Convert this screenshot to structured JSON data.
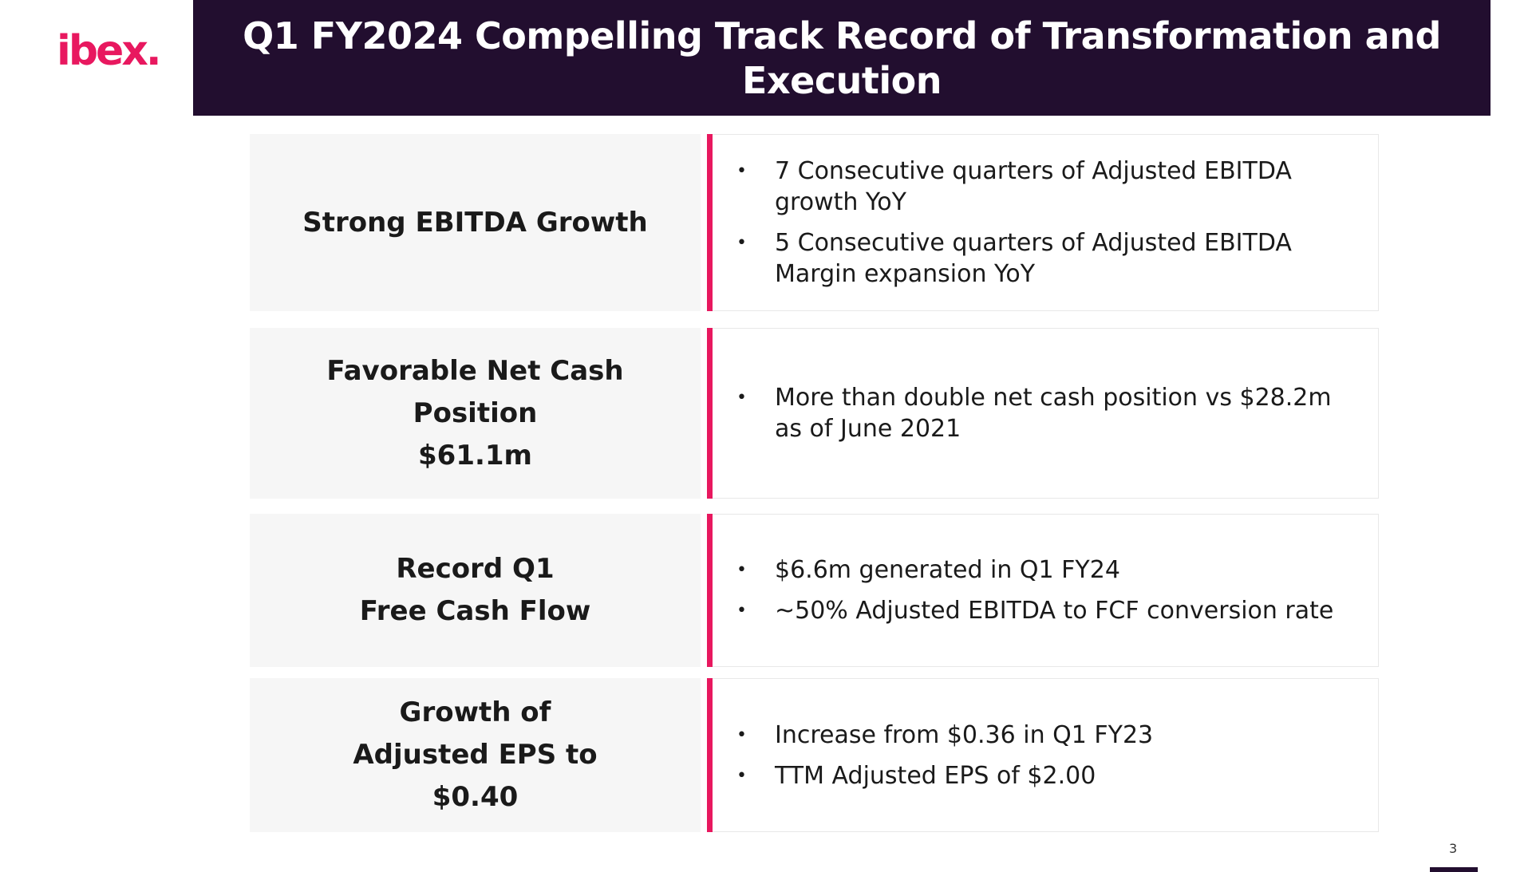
{
  "logo": {
    "text": "ibex."
  },
  "header": {
    "title": "Q1 FY2024 Compelling Track Record of Transformation and Execution"
  },
  "rows": [
    {
      "label": "Strong EBITDA Growth",
      "bullets": [
        "7 Consecutive quarters of Adjusted EBITDA growth YoY",
        "5 Consecutive quarters of Adjusted EBITDA Margin expansion YoY"
      ]
    },
    {
      "label": "Favorable Net Cash\nPosition\n$61.1m",
      "bullets": [
        "More than double net cash position vs  $28.2m as of June 2021"
      ]
    },
    {
      "label": "Record Q1\nFree Cash Flow",
      "bullets": [
        "$6.6m generated in Q1 FY24",
        "~50% Adjusted EBITDA to FCF conversion rate"
      ]
    },
    {
      "label": "Growth of\nAdjusted EPS to\n$0.40",
      "bullets": [
        "Increase from $0.36 in Q1 FY23",
        "TTM Adjusted EPS of $2.00"
      ]
    }
  ],
  "page_number": "3",
  "colors": {
    "header_bg": "#220e2f",
    "accent": "#e8185f",
    "panel_bg": "#f6f6f6"
  }
}
